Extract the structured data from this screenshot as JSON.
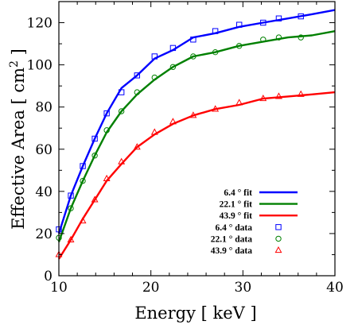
{
  "chart_data": {
    "type": "line",
    "xlabel": "Energy [ keV ]",
    "ylabel": "Effective Area [ cm",
    "ylabel_sup": "2",
    "ylabel_close": " ]",
    "xlim": [
      10,
      40
    ],
    "ylim": [
      0,
      130
    ],
    "xticks": [
      10,
      20,
      30,
      40
    ],
    "yticks": [
      0,
      20,
      40,
      60,
      80,
      100,
      120
    ],
    "grid": false,
    "legend_position": "bottom-right",
    "colors": {
      "blue": "#0000ff",
      "green": "#008000",
      "red": "#ff0000"
    },
    "series": [
      {
        "name": "6.4 ° fit",
        "kind": "fit",
        "color": "#0000ff",
        "x": [
          10,
          11.3,
          12.6,
          13.9,
          15.2,
          16.8,
          18.5,
          20.4,
          22.4,
          24.6,
          27.0,
          29.6,
          32.2,
          34.9,
          37.5,
          40
        ],
        "y": [
          20,
          38,
          52,
          65,
          77,
          89,
          95,
          103,
          107,
          113,
          115,
          118,
          120,
          122,
          124,
          126
        ]
      },
      {
        "name": "22.1 ° fit",
        "kind": "fit",
        "color": "#008000",
        "x": [
          10,
          11.3,
          12.6,
          13.9,
          15.2,
          16.8,
          18.5,
          20.4,
          22.4,
          24.6,
          27.0,
          29.6,
          32.2,
          34.9,
          37.5,
          40
        ],
        "y": [
          16,
          32,
          45,
          57,
          68,
          78,
          86,
          93,
          99,
          104,
          106,
          109,
          111,
          113,
          114,
          116
        ]
      },
      {
        "name": "43.9 ° fit",
        "kind": "fit",
        "color": "#ff0000",
        "x": [
          10,
          11.3,
          12.6,
          13.9,
          15.2,
          16.8,
          18.5,
          20.4,
          22.4,
          24.6,
          27.0,
          29.6,
          32.2,
          34.9,
          37.5,
          40
        ],
        "y": [
          8,
          17,
          27,
          36,
          45,
          53,
          61,
          67,
          72,
          76,
          79,
          81,
          84,
          85,
          86,
          87
        ]
      },
      {
        "name": "6.4 ° data",
        "kind": "data",
        "marker": "square",
        "color": "#0000ff",
        "x": [
          10,
          11.3,
          12.6,
          13.9,
          15.2,
          16.8,
          18.5,
          20.4,
          22.4,
          24.6,
          27.0,
          29.6,
          32.2,
          33.9,
          36.3
        ],
        "y": [
          22,
          38,
          52,
          65,
          77,
          87,
          95,
          104,
          108,
          112,
          116,
          119,
          120,
          122,
          123
        ]
      },
      {
        "name": "22.1 ° data",
        "kind": "data",
        "marker": "circle",
        "color": "#008000",
        "x": [
          10,
          11.3,
          12.6,
          13.9,
          15.2,
          16.8,
          18.5,
          20.4,
          22.4,
          24.6,
          27.0,
          29.6,
          32.2,
          33.9,
          36.3
        ],
        "y": [
          18,
          32,
          45,
          57,
          69,
          78,
          87,
          94,
          99,
          104,
          106,
          109,
          112,
          113,
          113
        ]
      },
      {
        "name": "43.9 ° data",
        "kind": "data",
        "marker": "triangle",
        "color": "#ff0000",
        "x": [
          10,
          11.3,
          12.6,
          13.9,
          15.2,
          16.8,
          18.5,
          20.4,
          22.4,
          24.6,
          27.0,
          29.6,
          32.2,
          33.9,
          36.3
        ],
        "y": [
          10,
          17,
          26,
          36,
          46,
          54,
          61,
          68,
          73,
          76,
          79,
          82,
          84,
          85,
          86
        ]
      }
    ]
  }
}
